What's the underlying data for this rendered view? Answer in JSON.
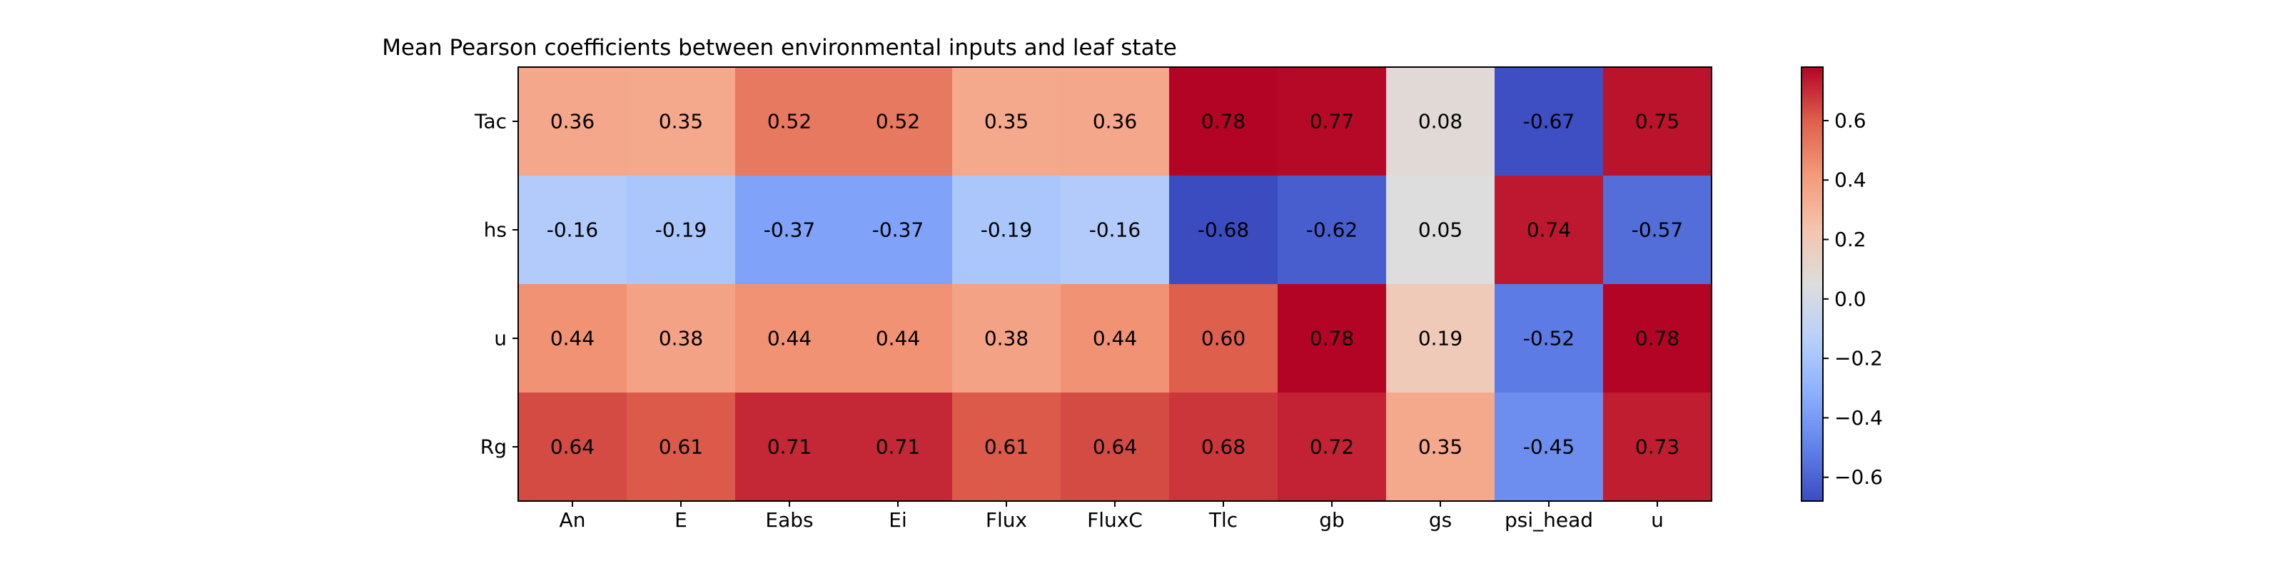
{
  "chart_data": {
    "type": "heatmap",
    "title": "Mean Pearson coefficients between environmental inputs and leaf state",
    "x_categories": [
      "An",
      "E",
      "Eabs",
      "Ei",
      "Flux",
      "FluxC",
      "Tlc",
      "gb",
      "gs",
      "psi_head",
      "u"
    ],
    "y_categories": [
      "Tac",
      "hs",
      "u",
      "Rg"
    ],
    "values": [
      [
        0.36,
        0.35,
        0.52,
        0.52,
        0.35,
        0.36,
        0.78,
        0.77,
        0.08,
        -0.67,
        0.75
      ],
      [
        -0.16,
        -0.19,
        -0.37,
        -0.37,
        -0.19,
        -0.16,
        -0.68,
        -0.62,
        0.05,
        0.74,
        -0.57
      ],
      [
        0.44,
        0.38,
        0.44,
        0.44,
        0.38,
        0.44,
        0.6,
        0.78,
        0.19,
        -0.52,
        0.78
      ],
      [
        0.64,
        0.61,
        0.71,
        0.71,
        0.61,
        0.64,
        0.68,
        0.72,
        0.35,
        -0.45,
        0.73
      ]
    ],
    "cell_labels": [
      [
        "0.36",
        "0.35",
        "0.52",
        "0.52",
        "0.35",
        "0.36",
        "0.78",
        "0.77",
        "0.08",
        "-0.67",
        "0.75"
      ],
      [
        "-0.16",
        "-0.19",
        "-0.37",
        "-0.37",
        "-0.19",
        "-0.16",
        "-0.68",
        "-0.62",
        "0.05",
        "0.74",
        "-0.57"
      ],
      [
        "0.44",
        "0.38",
        "0.44",
        "0.44",
        "0.38",
        "0.44",
        "0.60",
        "0.78",
        "0.19",
        "-0.52",
        "0.78"
      ],
      [
        "0.64",
        "0.61",
        "0.71",
        "0.71",
        "0.61",
        "0.64",
        "0.68",
        "0.72",
        "0.35",
        "-0.45",
        "0.73"
      ]
    ],
    "colormap": "coolwarm",
    "vmin": -0.68,
    "vmax": 0.78,
    "colorbar": {
      "ticks": [
        -0.6,
        -0.4,
        -0.2,
        0.0,
        0.2,
        0.4,
        0.6
      ],
      "tick_labels": [
        "−0.6",
        "−0.4",
        "−0.2",
        "0.0",
        "0.2",
        "0.4",
        "0.6"
      ]
    }
  }
}
